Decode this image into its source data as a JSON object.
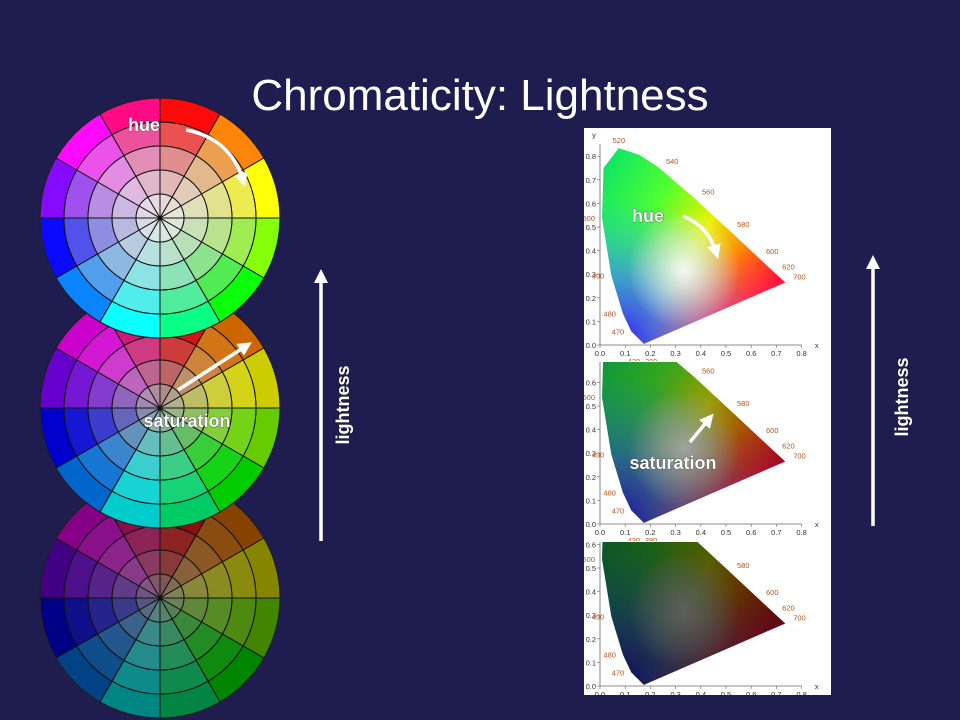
{
  "title": "Chromaticity: Lightness",
  "color_wheel": {
    "hue_label": "hue",
    "saturation_label": "saturation",
    "lightness_label": "lightness"
  },
  "cie_diagram": {
    "hue_label": "hue",
    "saturation_label": "saturation",
    "lightness_label": "lightness",
    "x_axis_label": "x",
    "y_axis_label": "y",
    "x_ticks": [
      "0.0",
      "0.1",
      "0.2",
      "0.3",
      "0.4",
      "0.5",
      "0.6",
      "0.7",
      "0.8"
    ],
    "y_ticks": [
      "0.0",
      "0.1",
      "0.2",
      "0.3",
      "0.4",
      "0.5",
      "0.6",
      "0.7",
      "0.8"
    ],
    "wavelengths": [
      "520",
      "540",
      "560",
      "580",
      "600",
      "620",
      "700",
      "500",
      "490",
      "480",
      "470",
      "430",
      "380"
    ]
  }
}
